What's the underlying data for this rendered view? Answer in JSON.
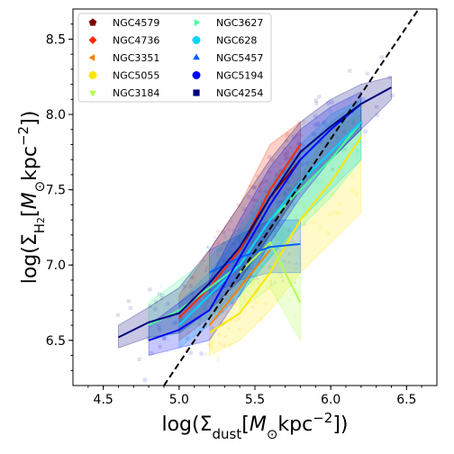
{
  "chart_data": {
    "type": "line",
    "title": "",
    "xlabel": "log(Σ_dust[M_⊙kpc^−2])",
    "ylabel": "log(Σ_H2[M_⊙kpc^−2])",
    "xlim": [
      4.3,
      6.7
    ],
    "ylim": [
      6.2,
      8.7
    ],
    "x_ticks": [
      4.5,
      5.0,
      5.5,
      6.0,
      6.5
    ],
    "x_tick_labels": [
      "4.5",
      "5.0",
      "5.5",
      "6.0",
      "6.5"
    ],
    "y_ticks": [
      6.5,
      7.0,
      7.5,
      8.0,
      8.5
    ],
    "y_tick_labels": [
      "6.5",
      "7.0",
      "7.5",
      "8.0",
      "8.5"
    ],
    "grid": false,
    "legend_position": "top-left",
    "legend_columns": 2,
    "reference_line": {
      "style": "dashed",
      "color": "#000000",
      "points": [
        [
          4.9,
          6.2
        ],
        [
          6.58,
          8.7
        ]
      ]
    },
    "series": [
      {
        "name": "NGC4579",
        "marker": "pentagon",
        "color": "#800000",
        "x": [
          5.4,
          5.6,
          5.8
        ],
        "y": [
          7.1,
          7.45,
          7.7
        ]
      },
      {
        "name": "NGC4736",
        "marker": "diamond",
        "color": "#ff2a00",
        "x": [
          5.0,
          5.2,
          5.4,
          5.6,
          5.8
        ],
        "y": [
          6.65,
          6.85,
          7.1,
          7.5,
          7.8
        ],
        "band_low": [
          6.5,
          6.65,
          6.85,
          7.2,
          7.5
        ],
        "band_high": [
          6.8,
          7.1,
          7.4,
          7.8,
          7.95
        ]
      },
      {
        "name": "NGC3351",
        "marker": "triangle-left",
        "color": "#ff8000",
        "x": [
          5.2,
          5.4,
          5.6
        ],
        "y": [
          6.6,
          6.85,
          7.1
        ]
      },
      {
        "name": "NGC5055",
        "marker": "circle",
        "color": "#ffe600",
        "x": [
          5.2,
          5.4,
          5.6,
          5.8,
          6.0,
          6.2
        ],
        "y": [
          6.55,
          6.68,
          6.95,
          7.3,
          7.55,
          7.85
        ],
        "band_low": [
          6.4,
          6.5,
          6.7,
          6.95,
          7.15,
          7.35
        ],
        "band_high": [
          6.7,
          6.9,
          7.25,
          7.6,
          7.9,
          8.0
        ]
      },
      {
        "name": "NGC3184",
        "marker": "triangle-down",
        "color": "#b0ff4a",
        "x": [
          5.4,
          5.6,
          5.8
        ],
        "y": [
          6.95,
          7.15,
          6.75
        ],
        "band_low": [
          6.7,
          6.85,
          6.5
        ],
        "band_high": [
          7.2,
          7.4,
          7.1
        ]
      },
      {
        "name": "NGC3627",
        "marker": "triangle-right",
        "color": "#4aff9c",
        "x": [
          4.8,
          5.0,
          5.2,
          5.4,
          5.6,
          5.8,
          6.0,
          6.2
        ],
        "y": [
          6.6,
          6.7,
          6.85,
          7.0,
          7.3,
          7.5,
          7.7,
          7.95
        ],
        "band_low": [
          6.5,
          6.55,
          6.65,
          6.8,
          7.05,
          7.25,
          7.45,
          7.7
        ],
        "band_high": [
          6.75,
          6.9,
          7.05,
          7.25,
          7.55,
          7.75,
          7.95,
          8.1
        ]
      },
      {
        "name": "NGC628",
        "marker": "circle",
        "color": "#00d4ff",
        "x": [
          5.0,
          5.2,
          5.4,
          5.6,
          5.8,
          6.0,
          6.2
        ],
        "y": [
          6.6,
          6.8,
          7.0,
          7.3,
          7.55,
          7.75,
          7.95
        ],
        "band_low": [
          6.45,
          6.6,
          6.8,
          7.05,
          7.3,
          7.5,
          7.7
        ],
        "band_high": [
          6.75,
          6.95,
          7.2,
          7.5,
          7.8,
          8.0,
          8.1
        ]
      },
      {
        "name": "NGC5457",
        "marker": "triangle-up",
        "color": "#0060ff",
        "x": [
          5.2,
          5.4,
          5.6,
          5.8
        ],
        "y": [
          6.95,
          7.05,
          7.12,
          7.14
        ],
        "band_low": [
          6.8,
          6.9,
          6.95,
          6.95
        ],
        "band_high": [
          7.1,
          7.2,
          7.3,
          7.3
        ]
      },
      {
        "name": "NGC5194",
        "marker": "circle",
        "color": "#0000ff",
        "x": [
          4.8,
          5.0,
          5.2,
          5.4,
          5.6,
          5.8,
          6.0,
          6.2
        ],
        "y": [
          6.5,
          6.57,
          6.7,
          7.05,
          7.4,
          7.7,
          7.9,
          8.07
        ],
        "band_low": [
          6.4,
          6.45,
          6.5,
          6.8,
          7.15,
          7.45,
          7.7,
          7.9
        ],
        "band_high": [
          6.6,
          6.75,
          6.9,
          7.3,
          7.65,
          7.9,
          8.05,
          8.15
        ]
      },
      {
        "name": "NGC4254",
        "marker": "square",
        "color": "#000080",
        "x": [
          4.6,
          4.8,
          5.0,
          5.2,
          5.4,
          5.6,
          5.8,
          6.0,
          6.2,
          6.4
        ],
        "y": [
          6.52,
          6.62,
          6.68,
          6.88,
          7.12,
          7.45,
          7.75,
          7.92,
          8.07,
          8.18
        ],
        "band_low": [
          6.45,
          6.52,
          6.55,
          6.7,
          6.9,
          7.2,
          7.5,
          7.7,
          7.9,
          8.1
        ],
        "band_high": [
          6.6,
          6.72,
          6.85,
          7.1,
          7.4,
          7.7,
          7.95,
          8.1,
          8.2,
          8.25
        ]
      }
    ]
  }
}
